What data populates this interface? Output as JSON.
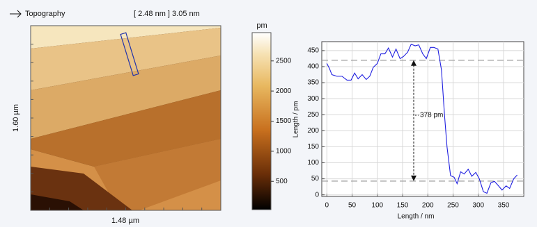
{
  "image": {
    "title": "Topography",
    "range_label": "[ 2.48 nm ] 3.05 nm",
    "height_label": "1.60 µm",
    "width_label": "1.48 µm"
  },
  "colorbar": {
    "unit": "pm",
    "lim": [
      30,
      2970
    ],
    "ticks": [
      500,
      1000,
      1500,
      2000,
      2500
    ]
  },
  "chart_data": {
    "type": "line",
    "x": [
      0,
      5,
      10,
      20,
      30,
      40,
      48,
      55,
      62,
      70,
      78,
      85,
      92,
      100,
      107,
      115,
      122,
      130,
      137,
      145,
      152,
      160,
      167,
      175,
      182,
      190,
      197,
      205,
      212,
      220,
      227,
      233,
      238,
      245,
      252,
      258,
      265,
      272,
      280,
      287,
      295,
      302,
      310,
      317,
      325,
      332,
      340,
      347,
      355,
      362,
      370,
      377
    ],
    "series": [
      {
        "color": "#1f1fe0",
        "values": [
          410,
          395,
          375,
          370,
          370,
          358,
          358,
          380,
          362,
          375,
          360,
          370,
          398,
          410,
          440,
          440,
          458,
          430,
          455,
          425,
          432,
          445,
          470,
          465,
          468,
          440,
          425,
          460,
          460,
          455,
          390,
          250,
          150,
          60,
          55,
          35,
          72,
          65,
          80,
          58,
          70,
          50,
          10,
          5,
          38,
          42,
          28,
          15,
          28,
          20,
          50,
          62
        ]
      }
    ],
    "xlim": [
      -10,
      390
    ],
    "ylim": [
      -5,
      478
    ],
    "xticks": [
      0,
      50,
      100,
      150,
      200,
      250,
      300,
      350
    ],
    "yticks": [
      0,
      50,
      100,
      150,
      200,
      250,
      300,
      350,
      400,
      450
    ],
    "xlabel": "Length / nm",
    "ylabel": "Length / pm",
    "grid": true,
    "reference_lines": [
      420,
      43
    ],
    "annotation": "378 pm"
  }
}
